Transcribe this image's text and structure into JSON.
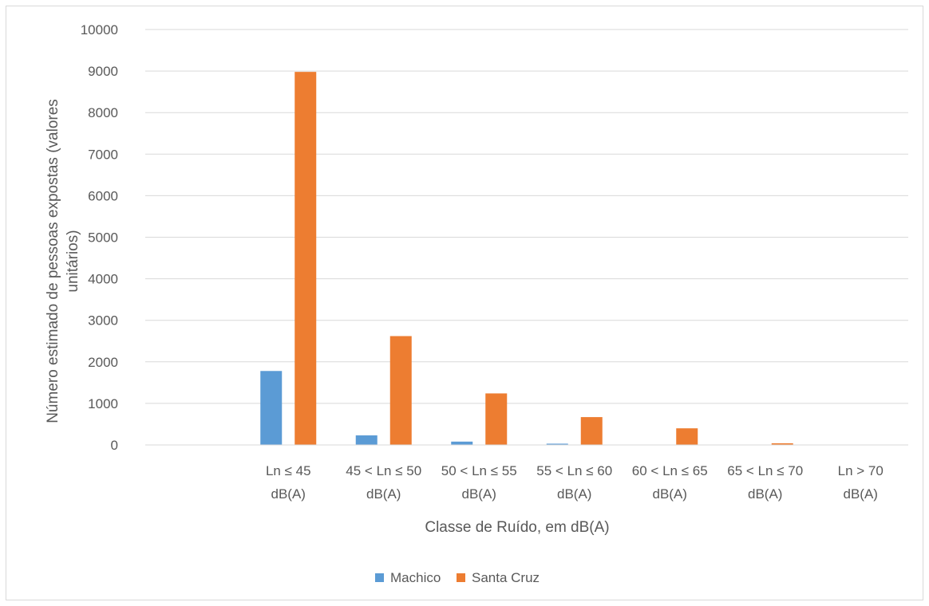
{
  "chart_data": {
    "type": "bar",
    "title": "",
    "xlabel": "Classe de Ruído, em dB(A)",
    "ylabel_lines": [
      "Número estimado de pessoas expostas (valores",
      "unitários)"
    ],
    "categories": [
      "",
      "Ln ≤ 45 dB(A)",
      "45 < Ln ≤ 50 dB(A)",
      "50 < Ln ≤ 55 dB(A)",
      "55 < Ln ≤ 60 dB(A)",
      "60 < Ln ≤ 65 dB(A)",
      "65 < Ln ≤ 70 dB(A)",
      "Ln > 70 dB(A)"
    ],
    "category_lines": [
      [
        "",
        ""
      ],
      [
        "Ln ≤ 45",
        "dB(A)"
      ],
      [
        "45 < Ln ≤ 50",
        "dB(A)"
      ],
      [
        "50 < Ln ≤ 55",
        "dB(A)"
      ],
      [
        "55 < Ln ≤ 60",
        "dB(A)"
      ],
      [
        "60 < Ln ≤ 65",
        "dB(A)"
      ],
      [
        "65 < Ln ≤ 70",
        "dB(A)"
      ],
      [
        "Ln > 70",
        "dB(A)"
      ]
    ],
    "series": [
      {
        "name": "Machico",
        "color": "#5b9bd5",
        "values": [
          0,
          1780,
          230,
          80,
          30,
          5,
          0,
          0
        ]
      },
      {
        "name": "Santa Cruz",
        "color": "#ed7d31",
        "values": [
          0,
          8980,
          2620,
          1240,
          670,
          400,
          40,
          0
        ]
      }
    ],
    "ylim": [
      0,
      10000
    ],
    "yticks": [
      0,
      1000,
      2000,
      3000,
      4000,
      5000,
      6000,
      7000,
      8000,
      9000,
      10000
    ],
    "grid": true,
    "legend_position": "bottom"
  }
}
